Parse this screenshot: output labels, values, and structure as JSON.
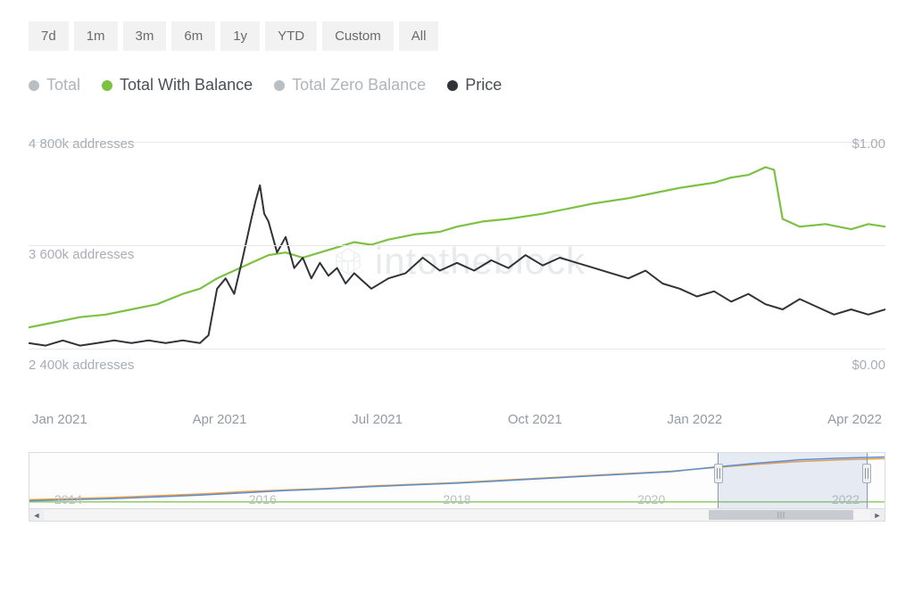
{
  "range_buttons": [
    "7d",
    "1m",
    "3m",
    "6m",
    "1y",
    "YTD",
    "Custom",
    "All"
  ],
  "legend": {
    "items": [
      {
        "label": "Total",
        "color": "#b9bec3",
        "active": false
      },
      {
        "label": "Total With Balance",
        "color": "#7cc142",
        "active": true
      },
      {
        "label": "Total Zero Balance",
        "color": "#b9bec3",
        "active": false
      },
      {
        "label": "Price",
        "color": "#2f3338",
        "active": true
      }
    ]
  },
  "watermark_text": "intotheblock",
  "chart": {
    "type": "line",
    "background_color": "#ffffff",
    "grid_color": "#e6e8ea",
    "axis_font_color": "#a8aeb5",
    "axis_fontsize": 15,
    "x_labels": [
      "Jan 2021",
      "Apr 2021",
      "Jul 2021",
      "Oct 2021",
      "Jan 2022",
      "Apr 2022"
    ],
    "y_left": {
      "ticks": [
        {
          "label": "4 800k addresses",
          "value": 4800,
          "pos": 0.05
        },
        {
          "label": "3 600k addresses",
          "value": 3600,
          "pos": 0.45
        },
        {
          "label": "2 400k addresses",
          "value": 2400,
          "pos": 0.85
        }
      ],
      "min": 2400,
      "max": 4800
    },
    "y_right": {
      "ticks": [
        {
          "label": "$1.00",
          "value": 1.0,
          "pos": 0.05
        },
        {
          "label": "$0.00",
          "value": 0.0,
          "pos": 0.85
        }
      ],
      "min": 0,
      "max": 1
    },
    "series": {
      "balance": {
        "color": "#7cc142",
        "stroke_width": 2.2,
        "points": [
          [
            0.0,
            0.77
          ],
          [
            0.03,
            0.75
          ],
          [
            0.06,
            0.73
          ],
          [
            0.09,
            0.72
          ],
          [
            0.12,
            0.7
          ],
          [
            0.15,
            0.68
          ],
          [
            0.18,
            0.64
          ],
          [
            0.2,
            0.62
          ],
          [
            0.22,
            0.58
          ],
          [
            0.24,
            0.55
          ],
          [
            0.26,
            0.52
          ],
          [
            0.28,
            0.49
          ],
          [
            0.3,
            0.48
          ],
          [
            0.32,
            0.5
          ],
          [
            0.34,
            0.48
          ],
          [
            0.36,
            0.46
          ],
          [
            0.38,
            0.44
          ],
          [
            0.4,
            0.45
          ],
          [
            0.42,
            0.43
          ],
          [
            0.45,
            0.41
          ],
          [
            0.48,
            0.4
          ],
          [
            0.5,
            0.38
          ],
          [
            0.53,
            0.36
          ],
          [
            0.56,
            0.35
          ],
          [
            0.6,
            0.33
          ],
          [
            0.63,
            0.31
          ],
          [
            0.66,
            0.29
          ],
          [
            0.7,
            0.27
          ],
          [
            0.73,
            0.25
          ],
          [
            0.76,
            0.23
          ],
          [
            0.8,
            0.21
          ],
          [
            0.82,
            0.19
          ],
          [
            0.84,
            0.18
          ],
          [
            0.86,
            0.15
          ],
          [
            0.87,
            0.16
          ],
          [
            0.88,
            0.35
          ],
          [
            0.9,
            0.38
          ],
          [
            0.93,
            0.37
          ],
          [
            0.96,
            0.39
          ],
          [
            0.98,
            0.37
          ],
          [
            1.0,
            0.38
          ]
        ]
      },
      "price": {
        "color": "#2f3338",
        "stroke_width": 2.0,
        "points": [
          [
            0.0,
            0.83
          ],
          [
            0.02,
            0.84
          ],
          [
            0.04,
            0.82
          ],
          [
            0.06,
            0.84
          ],
          [
            0.08,
            0.83
          ],
          [
            0.1,
            0.82
          ],
          [
            0.12,
            0.83
          ],
          [
            0.14,
            0.82
          ],
          [
            0.16,
            0.83
          ],
          [
            0.18,
            0.82
          ],
          [
            0.2,
            0.83
          ],
          [
            0.21,
            0.8
          ],
          [
            0.22,
            0.62
          ],
          [
            0.23,
            0.58
          ],
          [
            0.24,
            0.64
          ],
          [
            0.25,
            0.5
          ],
          [
            0.26,
            0.35
          ],
          [
            0.265,
            0.28
          ],
          [
            0.27,
            0.22
          ],
          [
            0.275,
            0.33
          ],
          [
            0.28,
            0.36
          ],
          [
            0.29,
            0.48
          ],
          [
            0.3,
            0.42
          ],
          [
            0.31,
            0.54
          ],
          [
            0.32,
            0.5
          ],
          [
            0.33,
            0.58
          ],
          [
            0.34,
            0.52
          ],
          [
            0.35,
            0.57
          ],
          [
            0.36,
            0.54
          ],
          [
            0.37,
            0.6
          ],
          [
            0.38,
            0.56
          ],
          [
            0.39,
            0.59
          ],
          [
            0.4,
            0.62
          ],
          [
            0.42,
            0.58
          ],
          [
            0.44,
            0.56
          ],
          [
            0.46,
            0.5
          ],
          [
            0.48,
            0.55
          ],
          [
            0.5,
            0.52
          ],
          [
            0.52,
            0.55
          ],
          [
            0.54,
            0.51
          ],
          [
            0.56,
            0.54
          ],
          [
            0.58,
            0.49
          ],
          [
            0.6,
            0.53
          ],
          [
            0.62,
            0.5
          ],
          [
            0.64,
            0.52
          ],
          [
            0.66,
            0.54
          ],
          [
            0.68,
            0.56
          ],
          [
            0.7,
            0.58
          ],
          [
            0.72,
            0.55
          ],
          [
            0.74,
            0.6
          ],
          [
            0.76,
            0.62
          ],
          [
            0.78,
            0.65
          ],
          [
            0.8,
            0.63
          ],
          [
            0.82,
            0.67
          ],
          [
            0.84,
            0.64
          ],
          [
            0.86,
            0.68
          ],
          [
            0.88,
            0.7
          ],
          [
            0.9,
            0.66
          ],
          [
            0.92,
            0.69
          ],
          [
            0.94,
            0.72
          ],
          [
            0.96,
            0.7
          ],
          [
            0.98,
            0.72
          ],
          [
            1.0,
            0.7
          ]
        ]
      }
    }
  },
  "brush": {
    "x_labels": [
      "2014",
      "2016",
      "2018",
      "2020",
      "2022"
    ],
    "label_color": "#b9bec3",
    "window": {
      "left_pct": 80.5,
      "width_pct": 17.5
    },
    "scrollbar_thumb": {
      "left_pct": 80.5,
      "width_pct": 17.5
    },
    "series": {
      "a": {
        "color": "#f2a13a",
        "stroke_width": 1.5,
        "points": [
          [
            0.0,
            0.82
          ],
          [
            0.05,
            0.8
          ],
          [
            0.1,
            0.78
          ],
          [
            0.15,
            0.75
          ],
          [
            0.2,
            0.72
          ],
          [
            0.25,
            0.68
          ],
          [
            0.3,
            0.65
          ],
          [
            0.35,
            0.62
          ],
          [
            0.4,
            0.58
          ],
          [
            0.45,
            0.55
          ],
          [
            0.5,
            0.52
          ],
          [
            0.55,
            0.48
          ],
          [
            0.6,
            0.44
          ],
          [
            0.65,
            0.4
          ],
          [
            0.7,
            0.36
          ],
          [
            0.75,
            0.32
          ],
          [
            0.8,
            0.26
          ],
          [
            0.85,
            0.2
          ],
          [
            0.9,
            0.15
          ],
          [
            0.95,
            0.12
          ],
          [
            1.0,
            0.1
          ]
        ]
      },
      "b": {
        "color": "#5a8fd6",
        "stroke_width": 1.5,
        "points": [
          [
            0.0,
            0.84
          ],
          [
            0.05,
            0.82
          ],
          [
            0.1,
            0.8
          ],
          [
            0.15,
            0.77
          ],
          [
            0.2,
            0.74
          ],
          [
            0.25,
            0.7
          ],
          [
            0.3,
            0.66
          ],
          [
            0.35,
            0.63
          ],
          [
            0.4,
            0.59
          ],
          [
            0.45,
            0.56
          ],
          [
            0.5,
            0.53
          ],
          [
            0.55,
            0.49
          ],
          [
            0.6,
            0.45
          ],
          [
            0.65,
            0.41
          ],
          [
            0.7,
            0.37
          ],
          [
            0.75,
            0.33
          ],
          [
            0.8,
            0.25
          ],
          [
            0.85,
            0.18
          ],
          [
            0.9,
            0.12
          ],
          [
            0.95,
            0.09
          ],
          [
            1.0,
            0.07
          ]
        ]
      },
      "c": {
        "color": "#7cc142",
        "stroke_width": 1.2,
        "points": [
          [
            0.0,
            0.86
          ],
          [
            0.2,
            0.86
          ],
          [
            0.4,
            0.86
          ],
          [
            0.6,
            0.86
          ],
          [
            0.8,
            0.86
          ],
          [
            1.0,
            0.86
          ]
        ]
      }
    }
  }
}
